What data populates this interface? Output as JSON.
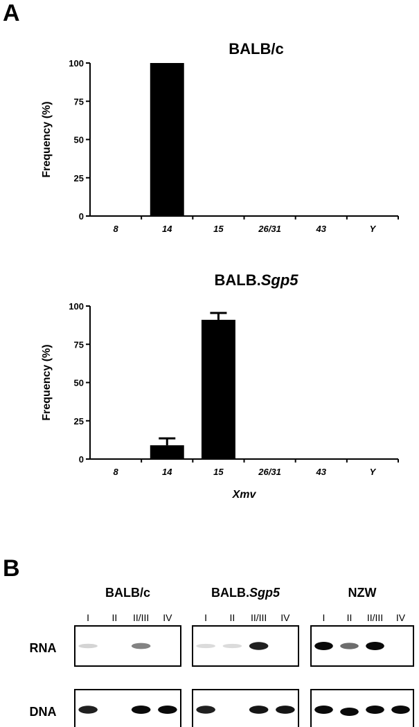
{
  "panels": {
    "a": "A",
    "b": "B"
  },
  "chart_data": [
    {
      "type": "bar",
      "title": "BALB/c",
      "title_italic_part": "",
      "ylabel": "Frequency (%)",
      "xlabel": "",
      "categories": [
        "8",
        "14",
        "15",
        "26/31",
        "43",
        "Y"
      ],
      "values": [
        0,
        100,
        0,
        0,
        0,
        0
      ],
      "errors": [
        0,
        0,
        0,
        0,
        0,
        0
      ],
      "ylim": [
        0,
        100
      ],
      "yticks": [
        "0",
        "25",
        "50",
        "75",
        "100"
      ],
      "bar_color": "#000000"
    },
    {
      "type": "bar",
      "title": "BALB.",
      "title_italic_part": "Sgp5",
      "ylabel": "Frequency (%)",
      "xlabel": "Xmv",
      "categories": [
        "8",
        "14",
        "15",
        "26/31",
        "43",
        "Y"
      ],
      "values": [
        0,
        9,
        91,
        0,
        0,
        0
      ],
      "errors": [
        0,
        4.5,
        4.5,
        0,
        0,
        0
      ],
      "ylim": [
        0,
        100
      ],
      "yticks": [
        "0",
        "25",
        "50",
        "75",
        "100"
      ],
      "bar_color": "#000000"
    }
  ],
  "gel": {
    "rows": [
      "RNA",
      "DNA"
    ],
    "groups": [
      {
        "title": "BALB/c",
        "title_italic_part": "",
        "lanes": [
          "I",
          "II",
          "II/III",
          "IV"
        ],
        "RNA": [
          0.08,
          0,
          0.45,
          0
        ],
        "DNA": [
          0.9,
          0,
          1.0,
          1.0
        ]
      },
      {
        "title": "BALB.",
        "title_italic_part": "Sgp5",
        "lanes": [
          "I",
          "II",
          "II/III",
          "IV"
        ],
        "RNA": [
          0.05,
          0.05,
          0.9,
          0
        ],
        "DNA": [
          0.9,
          0,
          0.95,
          0.95
        ]
      },
      {
        "title": "NZW",
        "title_italic_part": "",
        "lanes": [
          "I",
          "II",
          "II/III",
          "IV"
        ],
        "RNA": [
          1.0,
          0.55,
          1.0,
          0
        ],
        "DNA": [
          1.0,
          1.0,
          1.0,
          1.0
        ]
      }
    ]
  }
}
